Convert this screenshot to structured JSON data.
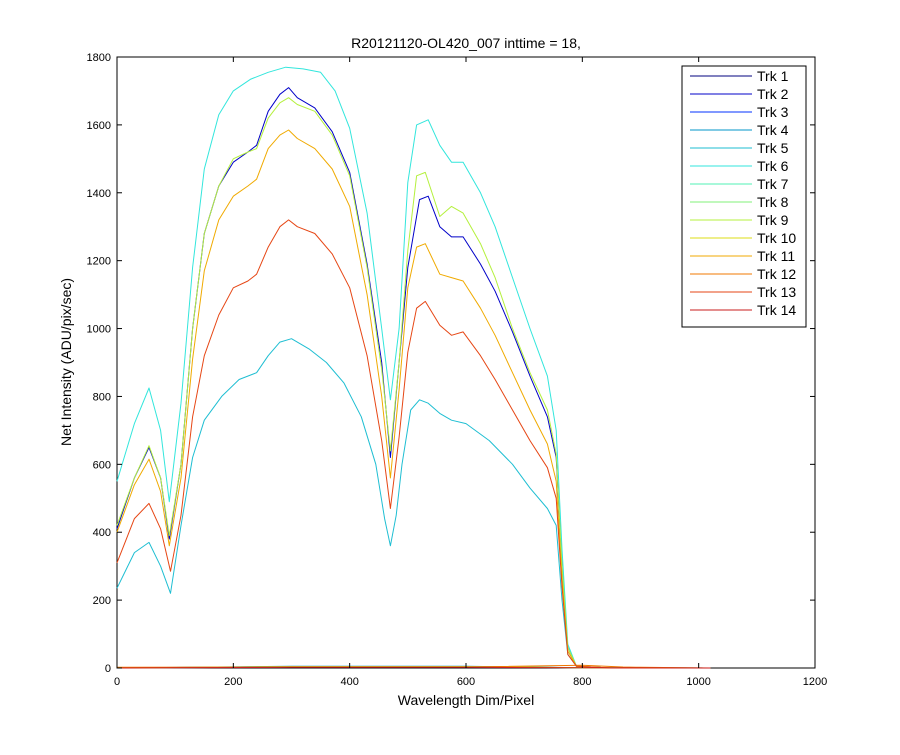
{
  "chart_data": {
    "type": "line",
    "title": "R20121120-OL420_007 inttime = 18,",
    "xlabel": "Wavelength Dim/Pixel",
    "ylabel": "Net Intensity (ADU/pix/sec)",
    "xlim": [
      0,
      1200
    ],
    "ylim": [
      0,
      1800
    ],
    "xticks": [
      0,
      200,
      400,
      600,
      800,
      1000,
      1200
    ],
    "yticks": [
      0,
      200,
      400,
      600,
      800,
      1000,
      1200,
      1400,
      1600,
      1800
    ],
    "grid": false,
    "legend_position": "top-right",
    "series": [
      {
        "name": "Trk 1",
        "color": "#00007f",
        "points": [
          [
            0,
            0
          ],
          [
            300,
            3
          ],
          [
            600,
            3
          ],
          [
            800,
            1
          ],
          [
            1020,
            0
          ]
        ]
      },
      {
        "name": "Trk 2",
        "color": "#0000c8",
        "points": [
          [
            0,
            410
          ],
          [
            30,
            560
          ],
          [
            55,
            650
          ],
          [
            75,
            560
          ],
          [
            90,
            380
          ],
          [
            110,
            600
          ],
          [
            130,
            1000
          ],
          [
            150,
            1280
          ],
          [
            175,
            1420
          ],
          [
            200,
            1490
          ],
          [
            225,
            1520
          ],
          [
            240,
            1540
          ],
          [
            260,
            1640
          ],
          [
            280,
            1690
          ],
          [
            295,
            1710
          ],
          [
            310,
            1680
          ],
          [
            340,
            1650
          ],
          [
            370,
            1580
          ],
          [
            400,
            1460
          ],
          [
            430,
            1190
          ],
          [
            455,
            900
          ],
          [
            470,
            620
          ],
          [
            485,
            900
          ],
          [
            500,
            1180
          ],
          [
            520,
            1380
          ],
          [
            535,
            1390
          ],
          [
            555,
            1300
          ],
          [
            575,
            1270
          ],
          [
            595,
            1270
          ],
          [
            625,
            1190
          ],
          [
            650,
            1110
          ],
          [
            680,
            990
          ],
          [
            710,
            860
          ],
          [
            740,
            740
          ],
          [
            755,
            620
          ],
          [
            765,
            300
          ],
          [
            775,
            60
          ],
          [
            790,
            5
          ],
          [
            850,
            0
          ],
          [
            1020,
            0
          ]
        ]
      },
      {
        "name": "Trk 3",
        "color": "#0032ff",
        "points": [
          [
            0,
            0
          ],
          [
            300,
            4
          ],
          [
            600,
            4
          ],
          [
            800,
            1
          ],
          [
            1020,
            0
          ]
        ]
      },
      {
        "name": "Trk 4",
        "color": "#0096c8",
        "points": [
          [
            0,
            0
          ],
          [
            300,
            5
          ],
          [
            600,
            5
          ],
          [
            800,
            1
          ],
          [
            1020,
            0
          ]
        ]
      },
      {
        "name": "Trk 5",
        "color": "#1ebed2",
        "points": [
          [
            0,
            235
          ],
          [
            30,
            340
          ],
          [
            55,
            370
          ],
          [
            75,
            300
          ],
          [
            92,
            220
          ],
          [
            110,
            420
          ],
          [
            130,
            620
          ],
          [
            150,
            730
          ],
          [
            180,
            800
          ],
          [
            210,
            850
          ],
          [
            240,
            870
          ],
          [
            260,
            920
          ],
          [
            280,
            960
          ],
          [
            300,
            970
          ],
          [
            330,
            940
          ],
          [
            360,
            900
          ],
          [
            390,
            840
          ],
          [
            420,
            740
          ],
          [
            445,
            600
          ],
          [
            460,
            440
          ],
          [
            470,
            360
          ],
          [
            480,
            450
          ],
          [
            490,
            600
          ],
          [
            505,
            760
          ],
          [
            520,
            790
          ],
          [
            535,
            780
          ],
          [
            555,
            750
          ],
          [
            575,
            730
          ],
          [
            600,
            720
          ],
          [
            640,
            670
          ],
          [
            680,
            600
          ],
          [
            710,
            530
          ],
          [
            740,
            470
          ],
          [
            755,
            420
          ],
          [
            765,
            200
          ],
          [
            775,
            40
          ],
          [
            790,
            5
          ],
          [
            850,
            0
          ],
          [
            1020,
            0
          ]
        ]
      },
      {
        "name": "Trk 6",
        "color": "#32e6dc",
        "points": [
          [
            0,
            550
          ],
          [
            30,
            720
          ],
          [
            55,
            825
          ],
          [
            75,
            700
          ],
          [
            90,
            490
          ],
          [
            110,
            780
          ],
          [
            130,
            1180
          ],
          [
            150,
            1470
          ],
          [
            175,
            1630
          ],
          [
            200,
            1700
          ],
          [
            230,
            1735
          ],
          [
            260,
            1755
          ],
          [
            290,
            1770
          ],
          [
            320,
            1765
          ],
          [
            350,
            1755
          ],
          [
            375,
            1700
          ],
          [
            400,
            1590
          ],
          [
            430,
            1340
          ],
          [
            455,
            1000
          ],
          [
            470,
            790
          ],
          [
            485,
            1000
          ],
          [
            500,
            1430
          ],
          [
            515,
            1600
          ],
          [
            535,
            1615
          ],
          [
            555,
            1540
          ],
          [
            575,
            1490
          ],
          [
            595,
            1490
          ],
          [
            625,
            1400
          ],
          [
            650,
            1300
          ],
          [
            680,
            1150
          ],
          [
            710,
            1000
          ],
          [
            740,
            860
          ],
          [
            755,
            700
          ],
          [
            765,
            350
          ],
          [
            775,
            70
          ],
          [
            790,
            5
          ],
          [
            850,
            0
          ],
          [
            1020,
            0
          ]
        ]
      },
      {
        "name": "Trk 7",
        "color": "#50f0b4",
        "points": [
          [
            0,
            0
          ],
          [
            300,
            3
          ],
          [
            600,
            3
          ],
          [
            800,
            1
          ],
          [
            1020,
            0
          ]
        ]
      },
      {
        "name": "Trk 8",
        "color": "#82f078",
        "points": [
          [
            0,
            0
          ],
          [
            300,
            4
          ],
          [
            600,
            4
          ],
          [
            800,
            1
          ],
          [
            1020,
            0
          ]
        ]
      },
      {
        "name": "Trk 9",
        "color": "#b4f03c",
        "points": [
          [
            0,
            420
          ],
          [
            30,
            560
          ],
          [
            55,
            655
          ],
          [
            75,
            560
          ],
          [
            90,
            390
          ],
          [
            110,
            600
          ],
          [
            130,
            1000
          ],
          [
            150,
            1280
          ],
          [
            175,
            1420
          ],
          [
            200,
            1500
          ],
          [
            225,
            1520
          ],
          [
            240,
            1530
          ],
          [
            260,
            1620
          ],
          [
            280,
            1665
          ],
          [
            295,
            1680
          ],
          [
            310,
            1660
          ],
          [
            340,
            1640
          ],
          [
            370,
            1570
          ],
          [
            400,
            1450
          ],
          [
            430,
            1180
          ],
          [
            455,
            880
          ],
          [
            470,
            640
          ],
          [
            485,
            900
          ],
          [
            500,
            1230
          ],
          [
            515,
            1450
          ],
          [
            530,
            1460
          ],
          [
            555,
            1330
          ],
          [
            575,
            1360
          ],
          [
            595,
            1340
          ],
          [
            625,
            1250
          ],
          [
            650,
            1150
          ],
          [
            680,
            1000
          ],
          [
            710,
            870
          ],
          [
            740,
            760
          ],
          [
            755,
            630
          ],
          [
            765,
            300
          ],
          [
            775,
            60
          ],
          [
            790,
            5
          ],
          [
            850,
            0
          ],
          [
            1020,
            0
          ]
        ]
      },
      {
        "name": "Trk 10",
        "color": "#dcdc14",
        "points": [
          [
            0,
            0
          ],
          [
            300,
            4
          ],
          [
            600,
            4
          ],
          [
            800,
            1
          ],
          [
            1020,
            0
          ]
        ]
      },
      {
        "name": "Trk 11",
        "color": "#f0aa00",
        "points": [
          [
            0,
            400
          ],
          [
            30,
            540
          ],
          [
            55,
            615
          ],
          [
            75,
            520
          ],
          [
            90,
            360
          ],
          [
            110,
            560
          ],
          [
            130,
            910
          ],
          [
            150,
            1170
          ],
          [
            175,
            1320
          ],
          [
            200,
            1390
          ],
          [
            225,
            1420
          ],
          [
            240,
            1440
          ],
          [
            260,
            1530
          ],
          [
            280,
            1570
          ],
          [
            295,
            1585
          ],
          [
            310,
            1560
          ],
          [
            340,
            1530
          ],
          [
            370,
            1470
          ],
          [
            400,
            1360
          ],
          [
            430,
            1100
          ],
          [
            455,
            800
          ],
          [
            470,
            560
          ],
          [
            485,
            820
          ],
          [
            500,
            1120
          ],
          [
            515,
            1240
          ],
          [
            530,
            1250
          ],
          [
            555,
            1160
          ],
          [
            575,
            1150
          ],
          [
            595,
            1140
          ],
          [
            625,
            1060
          ],
          [
            650,
            980
          ],
          [
            680,
            870
          ],
          [
            710,
            760
          ],
          [
            740,
            660
          ],
          [
            755,
            550
          ],
          [
            765,
            260
          ],
          [
            775,
            50
          ],
          [
            790,
            5
          ],
          [
            850,
            0
          ],
          [
            1020,
            0
          ]
        ]
      },
      {
        "name": "Trk 12",
        "color": "#f07800",
        "points": [
          [
            0,
            2
          ],
          [
            300,
            3
          ],
          [
            600,
            3
          ],
          [
            800,
            8
          ],
          [
            870,
            3
          ],
          [
            900,
            2
          ],
          [
            1020,
            0
          ]
        ]
      },
      {
        "name": "Trk 13",
        "color": "#e64614",
        "points": [
          [
            0,
            310
          ],
          [
            30,
            440
          ],
          [
            55,
            485
          ],
          [
            75,
            410
          ],
          [
            92,
            285
          ],
          [
            110,
            450
          ],
          [
            130,
            740
          ],
          [
            150,
            920
          ],
          [
            175,
            1040
          ],
          [
            200,
            1120
          ],
          [
            225,
            1140
          ],
          [
            240,
            1160
          ],
          [
            260,
            1240
          ],
          [
            280,
            1300
          ],
          [
            295,
            1320
          ],
          [
            310,
            1300
          ],
          [
            340,
            1280
          ],
          [
            370,
            1220
          ],
          [
            400,
            1120
          ],
          [
            430,
            920
          ],
          [
            455,
            670
          ],
          [
            470,
            470
          ],
          [
            485,
            680
          ],
          [
            500,
            930
          ],
          [
            515,
            1060
          ],
          [
            530,
            1080
          ],
          [
            555,
            1010
          ],
          [
            575,
            980
          ],
          [
            595,
            990
          ],
          [
            625,
            920
          ],
          [
            650,
            850
          ],
          [
            680,
            760
          ],
          [
            710,
            670
          ],
          [
            740,
            590
          ],
          [
            755,
            500
          ],
          [
            765,
            240
          ],
          [
            775,
            40
          ],
          [
            790,
            5
          ],
          [
            850,
            0
          ],
          [
            1020,
            0
          ]
        ]
      },
      {
        "name": "Trk 14",
        "color": "#c81e1e",
        "points": [
          [
            0,
            0
          ],
          [
            300,
            2
          ],
          [
            600,
            2
          ],
          [
            800,
            1
          ],
          [
            1020,
            0
          ]
        ]
      }
    ]
  }
}
